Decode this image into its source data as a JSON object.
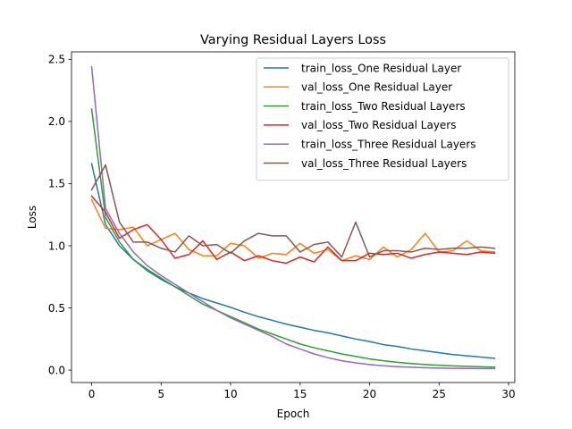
{
  "chart_data": {
    "type": "line",
    "title": "Varying Residual Layers Loss",
    "xlabel": "Epoch",
    "ylabel": "Loss",
    "xlim": [
      -1.45,
      30.45
    ],
    "ylim": [
      -0.1,
      2.56
    ],
    "xticks": [
      "0",
      "5",
      "10",
      "15",
      "20",
      "25",
      "30"
    ],
    "yticks": [
      "0.0",
      "0.5",
      "1.0",
      "1.5",
      "2.0",
      "2.5"
    ],
    "grid": false,
    "legend_position": "top-right",
    "x": [
      0,
      1,
      2,
      3,
      4,
      5,
      6,
      7,
      8,
      9,
      10,
      11,
      12,
      13,
      14,
      15,
      16,
      17,
      18,
      19,
      20,
      21,
      22,
      23,
      24,
      25,
      26,
      27,
      28,
      29
    ],
    "series": [
      {
        "name": "train_loss_One Residual Layer",
        "color": "#1f77b4",
        "values": [
          1.66,
          1.17,
          1.0,
          0.89,
          0.8,
          0.73,
          0.67,
          0.62,
          0.575,
          0.54,
          0.505,
          0.465,
          0.43,
          0.4,
          0.37,
          0.345,
          0.32,
          0.3,
          0.275,
          0.25,
          0.23,
          0.205,
          0.19,
          0.17,
          0.155,
          0.14,
          0.125,
          0.115,
          0.105,
          0.095
        ]
      },
      {
        "name": "val_loss_One Residual Layer",
        "color": "#ff7f0e",
        "values": [
          1.37,
          1.14,
          1.13,
          1.15,
          1.0,
          1.05,
          1.1,
          0.97,
          0.92,
          0.92,
          1.02,
          1.0,
          0.9,
          0.94,
          0.93,
          1.02,
          0.94,
          0.97,
          0.88,
          0.92,
          0.89,
          0.99,
          0.91,
          0.97,
          1.1,
          0.95,
          0.96,
          1.04,
          0.96,
          0.95
        ]
      },
      {
        "name": "train_loss_Two Residual Layers",
        "color": "#2ca02c",
        "values": [
          2.1,
          1.23,
          1.03,
          0.89,
          0.81,
          0.74,
          0.67,
          0.6,
          0.53,
          0.48,
          0.43,
          0.38,
          0.33,
          0.29,
          0.25,
          0.21,
          0.18,
          0.155,
          0.13,
          0.11,
          0.09,
          0.075,
          0.063,
          0.053,
          0.045,
          0.039,
          0.034,
          0.03,
          0.027,
          0.024
        ]
      },
      {
        "name": "val_loss_Two Residual Layers",
        "color": "#d62728",
        "values": [
          1.4,
          1.27,
          1.06,
          1.13,
          1.17,
          1.05,
          0.9,
          0.93,
          1.04,
          0.89,
          0.95,
          0.88,
          0.92,
          0.88,
          0.86,
          0.91,
          0.87,
          0.99,
          0.88,
          0.88,
          0.94,
          0.93,
          0.94,
          0.9,
          0.93,
          0.95,
          0.94,
          0.93,
          0.95,
          0.94
        ]
      },
      {
        "name": "train_loss_Three Residual Layers",
        "color": "#9467bd",
        "values": [
          2.44,
          1.3,
          1.1,
          0.95,
          0.84,
          0.76,
          0.69,
          0.62,
          0.55,
          0.48,
          0.42,
          0.37,
          0.32,
          0.27,
          0.21,
          0.17,
          0.13,
          0.1,
          0.075,
          0.058,
          0.045,
          0.035,
          0.028,
          0.023,
          0.019,
          0.016,
          0.014,
          0.013,
          0.012,
          0.012
        ]
      },
      {
        "name": "val_loss_Three Residual Layers",
        "color": "#8c564b",
        "values": [
          1.45,
          1.65,
          1.19,
          1.03,
          1.03,
          0.98,
          0.95,
          1.08,
          1.0,
          1.01,
          0.94,
          1.04,
          1.1,
          1.08,
          1.08,
          0.95,
          1.01,
          1.03,
          0.91,
          1.19,
          0.91,
          0.96,
          0.96,
          0.95,
          0.98,
          0.97,
          0.98,
          0.98,
          0.99,
          0.98
        ]
      }
    ]
  }
}
